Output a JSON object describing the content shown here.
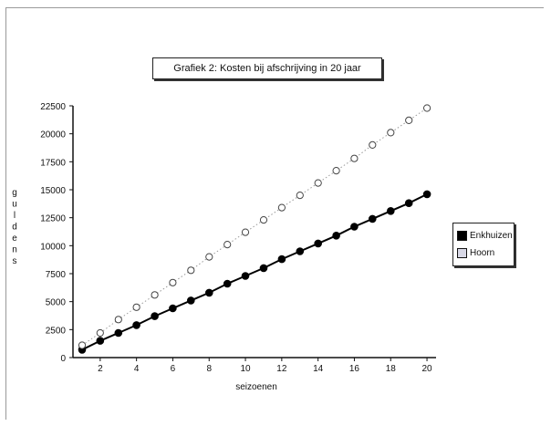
{
  "chart_data": {
    "type": "scatter",
    "title": "Grafiek 2: Kosten bij afschrijving in 20 jaar",
    "xlabel": "seizoenen",
    "ylabel": "guldens",
    "xlim": [
      0.5,
      20.5
    ],
    "ylim": [
      0,
      22500
    ],
    "x_ticks": [
      2,
      4,
      6,
      8,
      10,
      12,
      14,
      16,
      18,
      20
    ],
    "y_ticks": [
      0,
      2500,
      5000,
      7500,
      10000,
      12500,
      15000,
      17500,
      20000,
      22500
    ],
    "x": [
      1,
      2,
      3,
      4,
      5,
      6,
      7,
      8,
      9,
      10,
      11,
      12,
      13,
      14,
      15,
      16,
      17,
      18,
      19,
      20
    ],
    "series": [
      {
        "name": "Enkhuizen",
        "marker": "filled-circle",
        "line": "solid",
        "color": "#000000",
        "values": [
          700,
          1500,
          2200,
          2900,
          3700,
          4400,
          5100,
          5800,
          6600,
          7300,
          8000,
          8800,
          9500,
          10200,
          10900,
          11700,
          12400,
          13100,
          13800,
          14600
        ]
      },
      {
        "name": "Hoorn",
        "marker": "open-circle",
        "line": "dotted",
        "color": "#9a9a9a",
        "values": [
          1100,
          2200,
          3400,
          4500,
          5600,
          6700,
          7800,
          9000,
          10100,
          11200,
          12300,
          13400,
          14500,
          15600,
          16700,
          17800,
          19000,
          20100,
          21200,
          22300
        ]
      }
    ],
    "legend_position": "right",
    "grid": false
  }
}
